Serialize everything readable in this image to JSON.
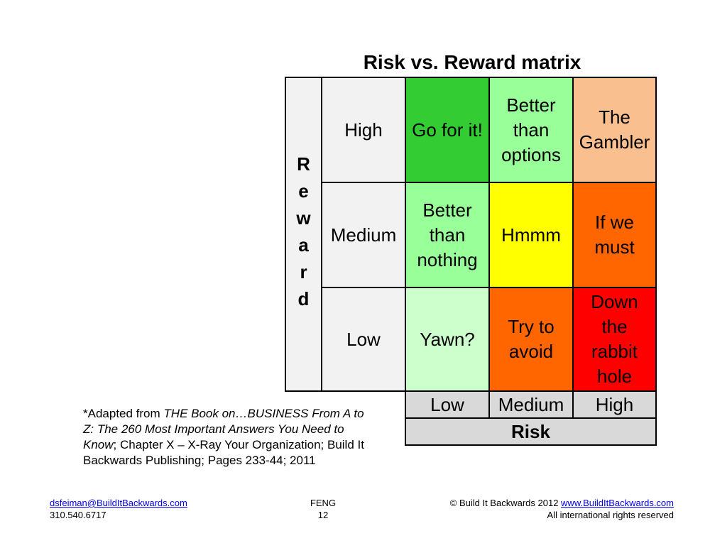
{
  "title": "Risk vs. Reward matrix",
  "y_axis_label": [
    "R",
    "e",
    "w",
    "a",
    "r",
    "d"
  ],
  "row_labels": [
    "High",
    "Medium",
    "Low"
  ],
  "col_labels": [
    "Low",
    "Medium",
    "High"
  ],
  "x_axis_label": "Risk",
  "cells": [
    [
      {
        "lines": [
          "Go for it!"
        ],
        "color": "#33cc33"
      },
      {
        "lines": [
          "Better",
          "than",
          "options"
        ],
        "color": "#99ff99"
      },
      {
        "lines": [
          "The",
          "Gambler"
        ],
        "color": "#f9bf8f"
      }
    ],
    [
      {
        "lines": [
          "Better",
          "than",
          "nothing"
        ],
        "color": "#99ff99"
      },
      {
        "lines": [
          "Hmmm"
        ],
        "color": "#ffff00"
      },
      {
        "lines": [
          "If we",
          "must"
        ],
        "color": "#ff6600"
      }
    ],
    [
      {
        "lines": [
          "Yawn?"
        ],
        "color": "#ccffcc"
      },
      {
        "lines": [
          "Try to",
          "avoid"
        ],
        "color": "#ff6600"
      },
      {
        "lines": [
          "Down",
          "the",
          "rabbit",
          "hole"
        ],
        "color": "#ff0000"
      }
    ]
  ],
  "citation": {
    "prefix": "*Adapted from ",
    "book_title": "THE Book on…BUSINESS From A to Z: The 260 Most Important Answers You Need to Know",
    "rest": "; Chapter X – X-Ray Your Organization; Build It Backwards Publishing; Pages 233-44; 2011"
  },
  "footer": {
    "email": "dsfeiman@BuildItBackwards.com",
    "phone": "310.540.6717",
    "center_label": "FENG",
    "page_number": "12",
    "copyright": "© Build It Backwards 2012 ",
    "website": "www.BuildItBackwards.com",
    "rights": "All international rights reserved"
  }
}
